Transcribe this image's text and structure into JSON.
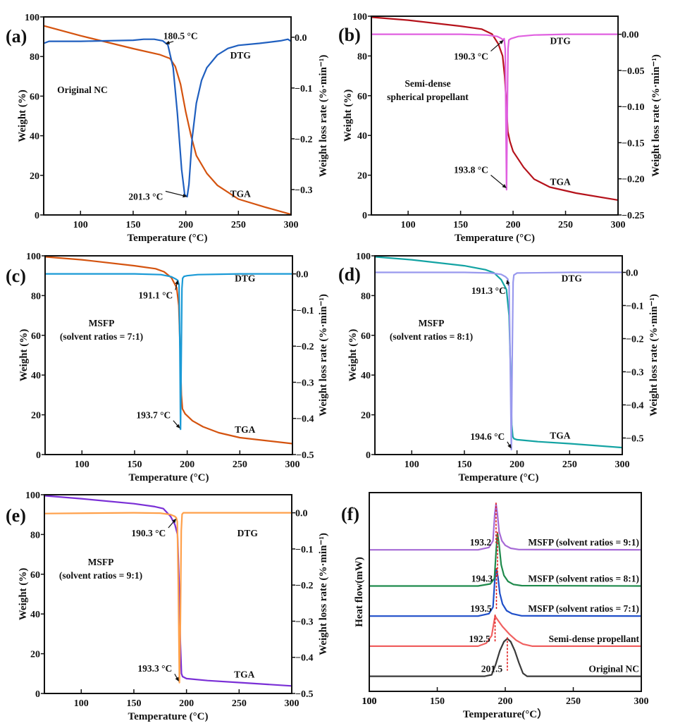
{
  "figure": {
    "panels_count": 6
  },
  "chart_data": [
    {
      "id": "a",
      "panel_label": "(a)",
      "type": "line",
      "xlabel": "Temperature (°C)",
      "ylabel": "Weight (%)",
      "y2label": "Weight loss rate (%·min⁻¹)",
      "xlim": [
        65,
        300
      ],
      "ylim": [
        0,
        100
      ],
      "y2lim": [
        -0.35,
        0.04
      ],
      "xticks": [
        100,
        150,
        200,
        250,
        300
      ],
      "yticks": [
        0,
        20,
        40,
        60,
        80,
        100
      ],
      "y2ticks": [
        0.0,
        -0.1,
        -0.2,
        -0.3
      ],
      "y2ticklabels": [
        "0.0",
        "−0.1",
        "−0.2",
        "−0.3"
      ],
      "sample_label": [
        "Original NC"
      ],
      "series": [
        {
          "name": "TGA",
          "axis": "left",
          "color": "#d4530f",
          "x": [
            65,
            100,
            150,
            175,
            185,
            190,
            195,
            200,
            205,
            210,
            220,
            230,
            250,
            275,
            300
          ],
          "y": [
            95.5,
            90.5,
            84,
            81,
            79,
            75,
            66,
            52,
            40,
            30,
            21,
            15,
            8,
            4,
            0.3
          ]
        },
        {
          "name": "DTG",
          "axis": "right",
          "color": "#1f5fbf",
          "x": [
            65,
            70,
            100,
            150,
            160,
            170,
            178,
            183,
            188,
            192,
            196,
            199,
            201.3,
            203,
            206,
            210,
            215,
            220,
            230,
            240,
            250,
            270,
            290,
            297,
            300
          ],
          "y": [
            -0.012,
            -0.008,
            -0.008,
            -0.006,
            -0.004,
            -0.004,
            -0.007,
            -0.015,
            -0.06,
            -0.15,
            -0.26,
            -0.31,
            -0.314,
            -0.29,
            -0.2,
            -0.13,
            -0.085,
            -0.06,
            -0.035,
            -0.022,
            -0.016,
            -0.012,
            -0.007,
            -0.004,
            -0.008
          ]
        }
      ],
      "series_labels": [
        {
          "text": "DTG",
          "x": 252,
          "y": 79
        },
        {
          "text": "TGA",
          "x": 252,
          "y": 9
        }
      ],
      "annotations": [
        {
          "text": "180.5 °C",
          "point": [
            180.5,
            -0.013
          ],
          "axis": "right",
          "label_at": [
            195,
            -0.004
          ]
        },
        {
          "text": "201.3 °C",
          "point": [
            201.3,
            -0.314
          ],
          "axis": "right",
          "label_at": [
            162,
            -0.32
          ]
        }
      ]
    },
    {
      "id": "b",
      "panel_label": "(b)",
      "type": "line",
      "xlabel": "Temperature (°C)",
      "ylabel": "Weight (%)",
      "y2label": "Weight loss rate (%·min⁻¹)",
      "xlim": [
        65,
        300
      ],
      "ylim": [
        0,
        100
      ],
      "y2lim": [
        -0.25,
        0.025
      ],
      "xticks": [
        100,
        150,
        200,
        250,
        300
      ],
      "yticks": [
        0,
        20,
        40,
        60,
        80,
        100
      ],
      "y2ticks": [
        0.0,
        -0.05,
        -0.1,
        -0.15,
        -0.2,
        -0.25
      ],
      "y2ticklabels": [
        "0.00",
        "−0.05",
        "−0.10",
        "−0.15",
        "−0.20",
        "−0.25"
      ],
      "sample_label": [
        "Semi-dense",
        "spherical propellant"
      ],
      "series": [
        {
          "name": "TGA",
          "axis": "left",
          "color": "#b5121b",
          "x": [
            65,
            100,
            150,
            170,
            180,
            186,
            190,
            192,
            193.8,
            195,
            197,
            200,
            210,
            220,
            235,
            260,
            300
          ],
          "y": [
            99.5,
            98,
            95,
            93.5,
            91,
            86,
            80,
            70,
            55,
            42,
            37,
            32,
            24,
            18,
            14,
            11,
            7.5
          ]
        },
        {
          "name": "DTG",
          "axis": "right",
          "color": "#e060e0",
          "x": [
            65,
            150,
            175,
            185,
            189,
            190.3,
            191.5,
            192.5,
            193.2,
            193.8,
            194.4,
            195.2,
            196,
            198,
            205,
            220,
            250,
            300
          ],
          "y": [
            0.0,
            0.0,
            -0.001,
            -0.003,
            -0.006,
            -0.008,
            -0.006,
            -0.02,
            -0.12,
            -0.215,
            -0.12,
            -0.02,
            -0.008,
            -0.006,
            -0.003,
            -0.001,
            0.0,
            0.0
          ]
        }
      ],
      "series_labels": [
        {
          "text": "DTG",
          "x": 245,
          "y": 86
        },
        {
          "text": "TGA",
          "x": 245,
          "y": 15
        }
      ],
      "annotations": [
        {
          "text": "190.3 °C",
          "point": [
            191,
            -0.008
          ],
          "axis": "right",
          "label_at": [
            160,
            -0.035
          ]
        },
        {
          "text": "193.8 °C",
          "point": [
            193.8,
            -0.213
          ],
          "axis": "right",
          "label_at": [
            160,
            -0.192
          ]
        }
      ]
    },
    {
      "id": "c",
      "panel_label": "(c)",
      "type": "line",
      "xlabel": "Temperature (°C)",
      "ylabel": "Weight (%)",
      "y2label": "Weight loss rate (%·min⁻¹)",
      "xlim": [
        65,
        300
      ],
      "ylim": [
        0,
        100
      ],
      "y2lim": [
        -0.5,
        0.05
      ],
      "xticks": [
        100,
        150,
        200,
        250,
        300
      ],
      "yticks": [
        0,
        20,
        40,
        60,
        80,
        100
      ],
      "y2ticks": [
        0.0,
        -0.1,
        -0.2,
        -0.3,
        -0.4,
        -0.5
      ],
      "y2ticklabels": [
        "0.0",
        "−0.1",
        "−0.2",
        "−0.3",
        "−0.4",
        "−0.5"
      ],
      "sample_label": [
        "MSFP",
        "(solvent ratios = 7:1)"
      ],
      "series": [
        {
          "name": "TGA",
          "axis": "left",
          "color": "#d4530f",
          "x": [
            65,
            100,
            150,
            170,
            178,
            185,
            190,
            192,
            193.5,
            194.5,
            195.5,
            198,
            205,
            215,
            230,
            250,
            300
          ],
          "y": [
            99.5,
            98,
            95,
            93.5,
            92,
            89,
            84,
            75,
            50,
            30,
            23,
            20.5,
            17,
            14,
            11,
            8.5,
            5.5
          ]
        },
        {
          "name": "DTG",
          "axis": "right",
          "color": "#1a9ad6",
          "x": [
            65,
            150,
            175,
            185,
            189,
            191.1,
            192.3,
            193.0,
            193.7,
            194.3,
            195.0,
            195.7,
            197,
            200,
            210,
            250,
            300
          ],
          "y": [
            0.0,
            0.0,
            -0.002,
            -0.008,
            -0.014,
            -0.018,
            -0.03,
            -0.2,
            -0.43,
            -0.25,
            -0.04,
            -0.012,
            -0.007,
            -0.005,
            -0.002,
            0.0,
            0.0
          ]
        }
      ],
      "series_labels": [
        {
          "text": "DTG",
          "x": 255,
          "y": 87
        },
        {
          "text": "TGA",
          "x": 255,
          "y": 11
        }
      ],
      "annotations": [
        {
          "text": "191.1 °C",
          "point": [
            191.1,
            -0.017
          ],
          "axis": "right",
          "label_at": [
            170,
            -0.068
          ]
        },
        {
          "text": "193.7 °C",
          "point": [
            193.3,
            -0.428
          ],
          "axis": "right",
          "label_at": [
            168,
            -0.4
          ]
        }
      ]
    },
    {
      "id": "d",
      "panel_label": "(d)",
      "type": "line",
      "xlabel": "Temperature (°C)",
      "ylabel": "Weight (%)",
      "y2label": "Weight loss rate (%·min⁻¹)",
      "xlim": [
        65,
        300
      ],
      "ylim": [
        0,
        100
      ],
      "y2lim": [
        -0.55,
        0.05
      ],
      "xticks": [
        100,
        150,
        200,
        250,
        300
      ],
      "yticks": [
        0,
        20,
        40,
        60,
        80,
        100
      ],
      "y2ticks": [
        0.0,
        -0.1,
        -0.2,
        -0.3,
        -0.4,
        -0.5
      ],
      "y2ticklabels": [
        "0.0",
        "−0.1",
        "−0.2",
        "−0.3",
        "−0.4",
        "−0.5"
      ],
      "sample_label": [
        "MSFP",
        "(solvent ratios = 8:1)"
      ],
      "series": [
        {
          "name": "TGA",
          "axis": "left",
          "color": "#13a3a3",
          "x": [
            65,
            100,
            150,
            170,
            178,
            185,
            190,
            192.5,
            194,
            195,
            196,
            197,
            200,
            220,
            250,
            300
          ],
          "y": [
            99.5,
            98,
            95,
            93,
            91.5,
            88,
            83,
            70,
            40,
            15,
            9,
            8,
            7.5,
            6.5,
            5.5,
            3.5
          ]
        },
        {
          "name": "DTG",
          "axis": "right",
          "color": "#9999ee",
          "x": [
            65,
            150,
            175,
            185,
            189,
            191.3,
            192.5,
            193.5,
            194.6,
            195.5,
            196.3,
            197,
            200,
            250,
            300
          ],
          "y": [
            0.0,
            0.0,
            -0.002,
            -0.006,
            -0.013,
            -0.02,
            -0.04,
            -0.25,
            -0.535,
            -0.25,
            -0.03,
            -0.008,
            -0.002,
            0.0,
            0.0
          ]
        }
      ],
      "series_labels": [
        {
          "text": "DTG",
          "x": 252,
          "y": 87
        },
        {
          "text": "TGA",
          "x": 241,
          "y": 8
        }
      ],
      "annotations": [
        {
          "text": "191.3 °C",
          "point": [
            190.5,
            -0.022
          ],
          "axis": "right",
          "label_at": [
            173,
            -0.065
          ]
        },
        {
          "text": "194.6 °C",
          "point": [
            194.6,
            -0.532
          ],
          "axis": "right",
          "label_at": [
            172,
            -0.505
          ]
        }
      ]
    },
    {
      "id": "e",
      "panel_label": "(e)",
      "type": "line",
      "xlabel": "Temperature (°C)",
      "ylabel": "Weight (%)",
      "y2label": "Weight loss rate (%·min⁻¹)",
      "xlim": [
        65,
        300
      ],
      "ylim": [
        0,
        100
      ],
      "y2lim": [
        -0.5,
        0.05
      ],
      "xticks": [
        100,
        150,
        200,
        250,
        300
      ],
      "yticks": [
        0,
        20,
        40,
        60,
        80,
        100
      ],
      "y2ticks": [
        0.0,
        -0.1,
        -0.2,
        -0.3,
        -0.4,
        -0.5
      ],
      "y2ticklabels": [
        "0.0",
        "−0.1",
        "−0.2",
        "−0.3",
        "−0.4",
        "−0.5"
      ],
      "sample_label": [
        "MSFP",
        "(solvent ratios = 9:1)"
      ],
      "series": [
        {
          "name": "TGA",
          "axis": "left",
          "color": "#7a2fd6",
          "x": [
            65,
            100,
            150,
            170,
            178,
            185,
            189,
            191.5,
            193,
            194.2,
            195.2,
            196.2,
            200,
            220,
            250,
            300
          ],
          "y": [
            99.5,
            98,
            95.5,
            94,
            93,
            89,
            85,
            80,
            55,
            25,
            10,
            8.5,
            7.5,
            6.5,
            5.5,
            3.8
          ]
        },
        {
          "name": "DTG",
          "axis": "right",
          "color": "#ffa04a",
          "x": [
            65,
            150,
            175,
            185,
            189,
            190.3,
            191.3,
            192.2,
            193.3,
            194.2,
            195.0,
            195.8,
            197,
            200,
            250,
            300
          ],
          "y": [
            -0.002,
            0.0,
            -0.001,
            -0.005,
            -0.01,
            -0.014,
            -0.025,
            -0.2,
            -0.47,
            -0.3,
            -0.05,
            -0.004,
            0.0,
            0.0,
            0.0,
            0.0
          ]
        }
      ],
      "series_labels": [
        {
          "text": "DTG",
          "x": 258,
          "y": 79
        },
        {
          "text": "TGA",
          "x": 255,
          "y": 8
        }
      ],
      "annotations": [
        {
          "text": "190.3 °C",
          "point": [
            190.3,
            -0.016
          ],
          "axis": "right",
          "label_at": [
            164,
            -0.065
          ]
        },
        {
          "text": "193.3 °C",
          "point": [
            192.8,
            -0.467
          ],
          "axis": "right",
          "label_at": [
            170,
            -0.44
          ]
        }
      ]
    },
    {
      "id": "f",
      "panel_label": "(f)",
      "type": "line",
      "xlabel": "Temperature(°C）",
      "ylabel": "Heat flow(mW)",
      "xlim": [
        100,
        300
      ],
      "xticks": [
        100,
        150,
        200,
        250,
        300
      ],
      "y_units": "arbitrary (stacked offsets)",
      "series": [
        {
          "name": "Original NC",
          "color": "#3a3a3a",
          "peak_label": "201.5",
          "peak_x": 201.5,
          "baseline": 0.2,
          "x": [
            100,
            185,
            190,
            193,
            196,
            199,
            201.5,
            204,
            207,
            210,
            213,
            216,
            300
          ],
          "y": [
            0.2,
            0.2,
            0.25,
            0.6,
            1.05,
            1.35,
            1.45,
            1.35,
            1.05,
            0.65,
            0.3,
            0.2,
            0.2
          ]
        },
        {
          "name": "Semi-dense  propellant",
          "color": "#f06060",
          "peak_label": "192.5",
          "peak_x": 192.5,
          "baseline": 1.2,
          "x": [
            100,
            180,
            186,
            190,
            191.5,
            192.5,
            194,
            198,
            203,
            208,
            213,
            220,
            300
          ],
          "y": [
            1.2,
            1.2,
            1.3,
            1.55,
            1.95,
            2.2,
            2.1,
            1.85,
            1.6,
            1.4,
            1.27,
            1.2,
            1.2
          ]
        },
        {
          "name": "MSFP (solvent ratios = 7:1)",
          "color": "#1f4fc9",
          "peak_label": "193.5",
          "peak_x": 193.5,
          "baseline": 2.2,
          "x": [
            100,
            180,
            188,
            191,
            192.3,
            193.5,
            194.6,
            196,
            198,
            201,
            205,
            212,
            300
          ],
          "y": [
            2.2,
            2.2,
            2.28,
            2.5,
            3.4,
            3.75,
            3.5,
            2.95,
            2.6,
            2.38,
            2.28,
            2.21,
            2.2
          ]
        },
        {
          "name": "MSFP (solvent ratios = 8:1)",
          "color": "#1f8a4c",
          "peak_label": "194.3",
          "peak_x": 194.3,
          "baseline": 3.2,
          "x": [
            100,
            180,
            189,
            192,
            193.3,
            194.3,
            195.4,
            197,
            199,
            202,
            206,
            212,
            300
          ],
          "y": [
            3.2,
            3.2,
            3.27,
            3.45,
            4.4,
            4.95,
            4.6,
            3.9,
            3.55,
            3.35,
            3.25,
            3.21,
            3.2
          ]
        },
        {
          "name": "MSFP (solvent ratios = 9:1)",
          "color": "#a66ad6",
          "peak_label": "193.2",
          "peak_x": 193.2,
          "baseline": 4.4,
          "x": [
            100,
            180,
            188,
            191,
            192.3,
            193.2,
            194.2,
            195.5,
            197.5,
            200,
            204,
            210,
            300
          ],
          "y": [
            4.4,
            4.4,
            4.48,
            4.7,
            5.6,
            5.92,
            5.6,
            5.0,
            4.7,
            4.55,
            4.45,
            4.41,
            4.4
          ]
        }
      ],
      "ylim": [
        -0.3,
        6.3
      ]
    }
  ]
}
